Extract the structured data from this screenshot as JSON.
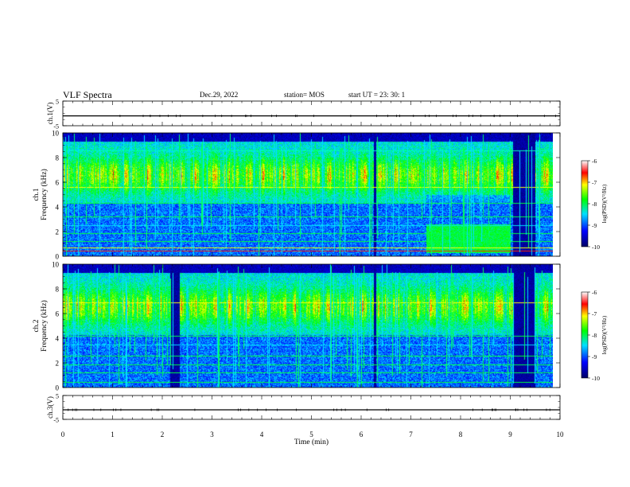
{
  "header": {
    "title": "VLF Spectra",
    "date": "Dec.29, 2022",
    "station": "station= MOS",
    "start": "start UT = 23: 30: 1"
  },
  "chart_data": [
    {
      "type": "line",
      "name": "ch1-voltage",
      "ylabel": "ch.1(V)",
      "ylim": [
        -5,
        5
      ],
      "yticks": [
        "5",
        "-5"
      ],
      "xlim": [
        0,
        10
      ],
      "x": [
        0,
        10
      ],
      "y": [
        -1,
        -1
      ]
    },
    {
      "type": "heatmap",
      "name": "ch1-spectrogram",
      "ylabel": "ch.1\nFrequency (kHz)",
      "ylim": [
        0,
        10
      ],
      "yticks": [
        "0",
        "2",
        "4",
        "6",
        "8",
        "10"
      ],
      "xlim": [
        0,
        10
      ],
      "colorbar": {
        "label": "log(PSD)(V²/Hz)",
        "ticks": [
          "-6",
          "-7",
          "-8",
          "-9",
          "-10"
        ],
        "range": [
          -10,
          -6
        ]
      }
    },
    {
      "type": "heatmap",
      "name": "ch2-spectrogram",
      "ylabel": "ch.2\nFrequency (kHz)",
      "ylim": [
        0,
        10
      ],
      "yticks": [
        "0",
        "2",
        "4",
        "6",
        "8",
        "10"
      ],
      "xlim": [
        0,
        10
      ],
      "colorbar": {
        "label": "log(PSD)(V²/Hz)",
        "ticks": [
          "-6",
          "-7",
          "-8",
          "-9",
          "-10"
        ],
        "range": [
          -10,
          -6
        ]
      }
    },
    {
      "type": "line",
      "name": "ch3-voltage",
      "ylabel": "ch.3(V)",
      "ylim": [
        -5,
        5
      ],
      "yticks": [
        "5",
        "-5"
      ],
      "xlim": [
        0,
        10
      ],
      "x": [
        0,
        10
      ],
      "y": [
        -1,
        -1
      ]
    }
  ],
  "x_axis": {
    "label": "Time (min)",
    "ticks": [
      "0",
      "1",
      "2",
      "3",
      "4",
      "5",
      "6",
      "7",
      "8",
      "9",
      "10"
    ]
  }
}
